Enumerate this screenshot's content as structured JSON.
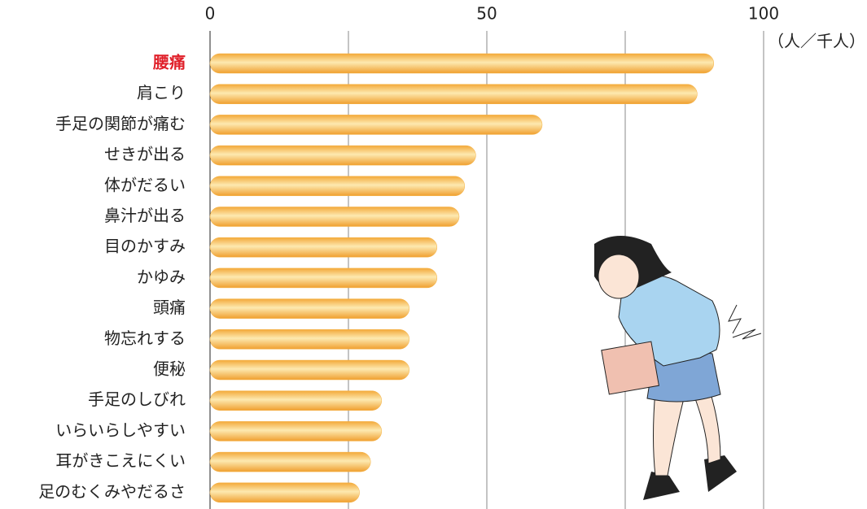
{
  "chart_data": {
    "type": "barh",
    "unit_label": "（人／千人）",
    "categories": [
      "腰痛",
      "肩こり",
      "手足の関節が痛む",
      "せきが出る",
      "体がだるい",
      "鼻汁が出る",
      "目のかすみ",
      "かゆみ",
      "頭痛",
      "物忘れする",
      "便秘",
      "手足のしびれ",
      "いらいらしやすい",
      "耳がきこえにくい",
      "足のむくみやだるさ"
    ],
    "values": [
      91,
      88,
      60,
      48,
      46,
      45,
      41,
      41,
      36,
      36,
      36,
      31,
      31,
      29,
      27
    ],
    "color": "#f5b040",
    "highlight_category_index": 0,
    "highlight_color": "#e0202a",
    "xlim": [
      0,
      100
    ],
    "xticks": [
      0,
      50,
      100
    ],
    "minor_xticks": [
      25,
      75
    ],
    "grid": true
  }
}
